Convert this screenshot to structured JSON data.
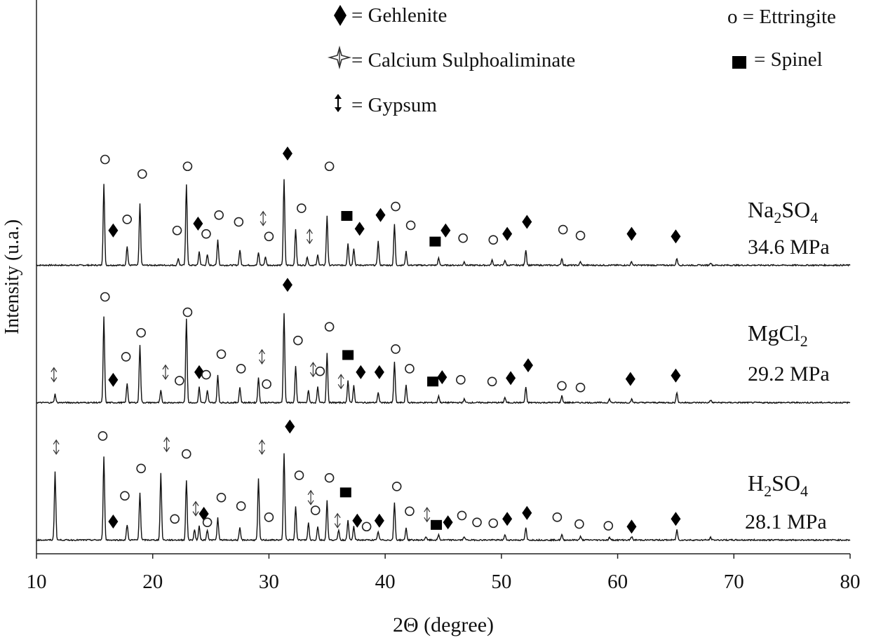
{
  "chart_data": {
    "type": "line",
    "title": "",
    "xlabel": "2Θ (degree)",
    "ylabel": "Intensity (u.a.)",
    "xlim": [
      10,
      80
    ],
    "x_ticks": [
      10,
      20,
      30,
      40,
      50,
      60,
      70,
      80
    ],
    "grid": false,
    "legend": {
      "placement": "top",
      "entries": [
        {
          "marker": "diamond",
          "text": "= Gehlenite"
        },
        {
          "marker": "star",
          "text": "= Calcium Sulphoaliminate"
        },
        {
          "marker": "arrow",
          "text": "= Gypsum"
        },
        {
          "marker": "circle",
          "text": "o = Ettringite"
        },
        {
          "marker": "square",
          "text": "= Spinel"
        }
      ]
    },
    "series": [
      {
        "name": "Na2SO4",
        "label_main": "Na",
        "label_sub1": "2",
        "label_mid": "SO",
        "label_sub2": "4",
        "label_strength": "34.6 MPa",
        "baseline_offset": 2.0,
        "peaks": [
          [
            15.8,
            0.95
          ],
          [
            17.8,
            0.22
          ],
          [
            18.9,
            0.72
          ],
          [
            22.2,
            0.08
          ],
          [
            22.9,
            0.95
          ],
          [
            24.0,
            0.16
          ],
          [
            24.7,
            0.12
          ],
          [
            25.6,
            0.3
          ],
          [
            27.5,
            0.18
          ],
          [
            29.1,
            0.15
          ],
          [
            29.7,
            0.1
          ],
          [
            31.3,
            1.0
          ],
          [
            32.3,
            0.42
          ],
          [
            33.3,
            0.1
          ],
          [
            34.2,
            0.12
          ],
          [
            35.0,
            0.58
          ],
          [
            36.8,
            0.26
          ],
          [
            37.3,
            0.2
          ],
          [
            39.4,
            0.28
          ],
          [
            40.8,
            0.48
          ],
          [
            41.8,
            0.16
          ],
          [
            44.6,
            0.08
          ],
          [
            46.8,
            0.04
          ],
          [
            49.2,
            0.06
          ],
          [
            50.3,
            0.06
          ],
          [
            52.1,
            0.18
          ],
          [
            55.2,
            0.08
          ],
          [
            56.8,
            0.04
          ],
          [
            61.2,
            0.04
          ],
          [
            65.1,
            0.08
          ],
          [
            68.0,
            0.03
          ]
        ],
        "markers": [
          {
            "type": "circle",
            "x": 15.9,
            "h": 1.25
          },
          {
            "type": "diamond",
            "x": 16.6,
            "h": 0.42
          },
          {
            "type": "circle",
            "x": 17.8,
            "h": 0.55
          },
          {
            "type": "circle",
            "x": 19.1,
            "h": 1.08
          },
          {
            "type": "circle",
            "x": 22.1,
            "h": 0.42
          },
          {
            "type": "circle",
            "x": 23.0,
            "h": 1.17
          },
          {
            "type": "diamond",
            "x": 23.9,
            "h": 0.5
          },
          {
            "type": "circle",
            "x": 24.6,
            "h": 0.38
          },
          {
            "type": "circle",
            "x": 25.7,
            "h": 0.6
          },
          {
            "type": "circle",
            "x": 27.4,
            "h": 0.52
          },
          {
            "type": "arrow",
            "x": 29.5,
            "h": 0.56
          },
          {
            "type": "circle",
            "x": 30.0,
            "h": 0.35
          },
          {
            "type": "diamond",
            "x": 31.6,
            "h": 1.32
          },
          {
            "type": "arrow",
            "x": 33.5,
            "h": 0.35
          },
          {
            "type": "circle",
            "x": 32.8,
            "h": 0.68
          },
          {
            "type": "circle",
            "x": 35.2,
            "h": 1.17
          },
          {
            "type": "square",
            "x": 36.7,
            "h": 0.59
          },
          {
            "type": "diamond",
            "x": 37.8,
            "h": 0.44
          },
          {
            "type": "diamond",
            "x": 39.6,
            "h": 0.6
          },
          {
            "type": "circle",
            "x": 40.9,
            "h": 0.7
          },
          {
            "type": "circle",
            "x": 42.2,
            "h": 0.48
          },
          {
            "type": "square",
            "x": 44.3,
            "h": 0.29
          },
          {
            "type": "diamond",
            "x": 45.2,
            "h": 0.42
          },
          {
            "type": "circle",
            "x": 46.7,
            "h": 0.33
          },
          {
            "type": "circle",
            "x": 49.3,
            "h": 0.31
          },
          {
            "type": "diamond",
            "x": 50.5,
            "h": 0.38
          },
          {
            "type": "diamond",
            "x": 52.2,
            "h": 0.52
          },
          {
            "type": "circle",
            "x": 55.3,
            "h": 0.43
          },
          {
            "type": "circle",
            "x": 56.8,
            "h": 0.36
          },
          {
            "type": "diamond",
            "x": 61.2,
            "h": 0.38
          },
          {
            "type": "diamond",
            "x": 65.0,
            "h": 0.35
          }
        ]
      },
      {
        "name": "MgCl2",
        "label_main": "MgCl",
        "label_sub1": "2",
        "label_mid": "",
        "label_sub2": "",
        "label_strength": "29.2 MPa",
        "baseline_offset": 1.0,
        "peaks": [
          [
            11.6,
            0.1
          ],
          [
            15.8,
            1.0
          ],
          [
            17.8,
            0.22
          ],
          [
            18.9,
            0.68
          ],
          [
            20.7,
            0.14
          ],
          [
            22.9,
            0.98
          ],
          [
            24.0,
            0.18
          ],
          [
            24.7,
            0.14
          ],
          [
            25.6,
            0.32
          ],
          [
            27.5,
            0.18
          ],
          [
            29.1,
            0.3
          ],
          [
            31.3,
            1.05
          ],
          [
            32.3,
            0.42
          ],
          [
            33.4,
            0.14
          ],
          [
            34.2,
            0.18
          ],
          [
            35.0,
            0.58
          ],
          [
            36.8,
            0.26
          ],
          [
            37.3,
            0.2
          ],
          [
            39.4,
            0.12
          ],
          [
            40.8,
            0.48
          ],
          [
            41.8,
            0.2
          ],
          [
            44.6,
            0.08
          ],
          [
            46.8,
            0.04
          ],
          [
            50.3,
            0.06
          ],
          [
            52.1,
            0.18
          ],
          [
            55.2,
            0.08
          ],
          [
            59.3,
            0.04
          ],
          [
            61.2,
            0.04
          ],
          [
            65.1,
            0.12
          ],
          [
            68.0,
            0.03
          ]
        ],
        "markers": [
          {
            "type": "arrow",
            "x": 11.5,
            "h": 0.34
          },
          {
            "type": "circle",
            "x": 15.9,
            "h": 1.25
          },
          {
            "type": "diamond",
            "x": 16.6,
            "h": 0.28
          },
          {
            "type": "circle",
            "x": 17.7,
            "h": 0.55
          },
          {
            "type": "circle",
            "x": 19.0,
            "h": 0.83
          },
          {
            "type": "arrow",
            "x": 21.1,
            "h": 0.37
          },
          {
            "type": "circle",
            "x": 22.3,
            "h": 0.27
          },
          {
            "type": "circle",
            "x": 23.0,
            "h": 1.07
          },
          {
            "type": "diamond",
            "x": 24.0,
            "h": 0.37
          },
          {
            "type": "circle",
            "x": 24.6,
            "h": 0.34
          },
          {
            "type": "circle",
            "x": 25.9,
            "h": 0.58
          },
          {
            "type": "circle",
            "x": 27.6,
            "h": 0.41
          },
          {
            "type": "arrow",
            "x": 29.4,
            "h": 0.55
          },
          {
            "type": "circle",
            "x": 29.8,
            "h": 0.23
          },
          {
            "type": "diamond",
            "x": 31.6,
            "h": 1.39
          },
          {
            "type": "circle",
            "x": 32.5,
            "h": 0.74
          },
          {
            "type": "arrow",
            "x": 33.8,
            "h": 0.4
          },
          {
            "type": "circle",
            "x": 34.4,
            "h": 0.38
          },
          {
            "type": "arrow",
            "x": 36.2,
            "h": 0.26
          },
          {
            "type": "circle",
            "x": 35.2,
            "h": 0.9
          },
          {
            "type": "square",
            "x": 36.8,
            "h": 0.57
          },
          {
            "type": "diamond",
            "x": 37.9,
            "h": 0.37
          },
          {
            "type": "diamond",
            "x": 39.5,
            "h": 0.37
          },
          {
            "type": "circle",
            "x": 40.9,
            "h": 0.64
          },
          {
            "type": "circle",
            "x": 42.1,
            "h": 0.41
          },
          {
            "type": "square",
            "x": 44.1,
            "h": 0.26
          },
          {
            "type": "diamond",
            "x": 44.9,
            "h": 0.31
          },
          {
            "type": "circle",
            "x": 46.5,
            "h": 0.28
          },
          {
            "type": "circle",
            "x": 49.2,
            "h": 0.26
          },
          {
            "type": "diamond",
            "x": 50.8,
            "h": 0.3
          },
          {
            "type": "diamond",
            "x": 52.3,
            "h": 0.45
          },
          {
            "type": "circle",
            "x": 55.2,
            "h": 0.21
          },
          {
            "type": "circle",
            "x": 56.8,
            "h": 0.19
          },
          {
            "type": "diamond",
            "x": 61.1,
            "h": 0.29
          },
          {
            "type": "diamond",
            "x": 65.0,
            "h": 0.33
          }
        ]
      },
      {
        "name": "H2SO4",
        "label_main": "H",
        "label_sub1": "2",
        "label_mid": "SO",
        "label_sub2": "4",
        "label_strength": "28.1 MPa",
        "baseline_offset": 0.0,
        "peaks": [
          [
            11.6,
            0.8
          ],
          [
            15.8,
            0.98
          ],
          [
            17.8,
            0.18
          ],
          [
            18.9,
            0.56
          ],
          [
            20.7,
            0.78
          ],
          [
            22.9,
            0.7
          ],
          [
            23.6,
            0.12
          ],
          [
            24.0,
            0.16
          ],
          [
            24.7,
            0.12
          ],
          [
            25.6,
            0.26
          ],
          [
            27.5,
            0.14
          ],
          [
            29.1,
            0.72
          ],
          [
            31.3,
            1.02
          ],
          [
            32.3,
            0.4
          ],
          [
            33.4,
            0.2
          ],
          [
            34.2,
            0.16
          ],
          [
            35.0,
            0.46
          ],
          [
            36.0,
            0.12
          ],
          [
            36.8,
            0.24
          ],
          [
            37.3,
            0.16
          ],
          [
            39.4,
            0.1
          ],
          [
            40.8,
            0.44
          ],
          [
            41.8,
            0.14
          ],
          [
            43.5,
            0.04
          ],
          [
            44.6,
            0.06
          ],
          [
            46.8,
            0.04
          ],
          [
            50.3,
            0.06
          ],
          [
            52.1,
            0.14
          ],
          [
            55.2,
            0.06
          ],
          [
            56.8,
            0.04
          ],
          [
            59.3,
            0.03
          ],
          [
            61.2,
            0.04
          ],
          [
            65.1,
            0.12
          ],
          [
            68.0,
            0.03
          ]
        ],
        "markers": [
          {
            "type": "arrow",
            "x": 11.7,
            "h": 1.1
          },
          {
            "type": "circle",
            "x": 15.7,
            "h": 1.23
          },
          {
            "type": "circle",
            "x": 17.6,
            "h": 0.53
          },
          {
            "type": "diamond",
            "x": 16.6,
            "h": 0.23
          },
          {
            "type": "circle",
            "x": 19.0,
            "h": 0.85
          },
          {
            "type": "arrow",
            "x": 21.2,
            "h": 1.13
          },
          {
            "type": "circle",
            "x": 21.9,
            "h": 0.26
          },
          {
            "type": "circle",
            "x": 22.9,
            "h": 1.02
          },
          {
            "type": "arrow",
            "x": 23.7,
            "h": 0.38
          },
          {
            "type": "diamond",
            "x": 24.4,
            "h": 0.32
          },
          {
            "type": "circle",
            "x": 24.7,
            "h": 0.22
          },
          {
            "type": "circle",
            "x": 25.9,
            "h": 0.51
          },
          {
            "type": "circle",
            "x": 27.6,
            "h": 0.41
          },
          {
            "type": "arrow",
            "x": 29.4,
            "h": 1.1
          },
          {
            "type": "circle",
            "x": 30.0,
            "h": 0.28
          },
          {
            "type": "diamond",
            "x": 31.8,
            "h": 1.34
          },
          {
            "type": "circle",
            "x": 32.6,
            "h": 0.77
          },
          {
            "type": "arrow",
            "x": 33.6,
            "h": 0.51
          },
          {
            "type": "circle",
            "x": 34.0,
            "h": 0.36
          },
          {
            "type": "arrow",
            "x": 35.9,
            "h": 0.24
          },
          {
            "type": "circle",
            "x": 35.2,
            "h": 0.74
          },
          {
            "type": "square",
            "x": 36.6,
            "h": 0.57
          },
          {
            "type": "diamond",
            "x": 37.6,
            "h": 0.24
          },
          {
            "type": "circle",
            "x": 38.4,
            "h": 0.17
          },
          {
            "type": "diamond",
            "x": 39.5,
            "h": 0.24
          },
          {
            "type": "circle",
            "x": 41.0,
            "h": 0.64
          },
          {
            "type": "circle",
            "x": 42.1,
            "h": 0.35
          },
          {
            "type": "arrow",
            "x": 43.6,
            "h": 0.31
          },
          {
            "type": "square",
            "x": 44.4,
            "h": 0.19
          },
          {
            "type": "diamond",
            "x": 45.4,
            "h": 0.22
          },
          {
            "type": "circle",
            "x": 46.6,
            "h": 0.3
          },
          {
            "type": "circle",
            "x": 47.9,
            "h": 0.22
          },
          {
            "type": "circle",
            "x": 49.3,
            "h": 0.21
          },
          {
            "type": "diamond",
            "x": 50.5,
            "h": 0.26
          },
          {
            "type": "diamond",
            "x": 52.2,
            "h": 0.33
          },
          {
            "type": "circle",
            "x": 54.8,
            "h": 0.28
          },
          {
            "type": "circle",
            "x": 56.7,
            "h": 0.2
          },
          {
            "type": "circle",
            "x": 59.2,
            "h": 0.18
          },
          {
            "type": "diamond",
            "x": 61.2,
            "h": 0.17
          },
          {
            "type": "diamond",
            "x": 65.0,
            "h": 0.26
          }
        ]
      }
    ]
  }
}
